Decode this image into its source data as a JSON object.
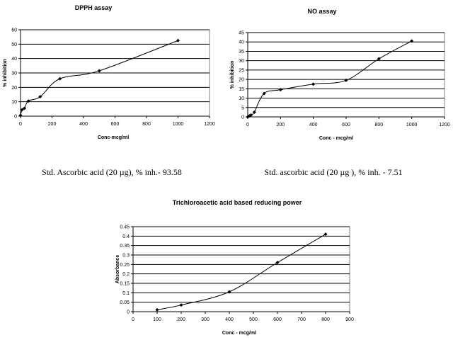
{
  "chart_data": [
    {
      "type": "line",
      "title": "DPPH assay",
      "xlabel": "Conc-mcg/ml",
      "ylabel": "% inhibition",
      "xlim": [
        0,
        1200
      ],
      "ylim": [
        0,
        60
      ],
      "xticks": [
        0,
        200,
        400,
        600,
        800,
        1000,
        1200
      ],
      "yticks": [
        0,
        10,
        20,
        30,
        40,
        50,
        60
      ],
      "x": [
        0,
        10,
        25,
        50,
        125,
        250,
        500,
        1000
      ],
      "y": [
        0.5,
        4.5,
        5.5,
        10.5,
        13.5,
        26,
        31.5,
        52.5
      ],
      "grid": "horizontal",
      "note": "Std. Ascorbic acid (20 µg), % inh.- 93.58"
    },
    {
      "type": "line",
      "title": "NO assay",
      "xlabel": "Conc - mcg/ml",
      "ylabel": "% inhibition",
      "xlim": [
        0,
        1200
      ],
      "ylim": [
        0,
        45
      ],
      "xticks": [
        0,
        200,
        400,
        600,
        800,
        1000,
        1200
      ],
      "yticks": [
        0,
        5,
        10,
        15,
        20,
        25,
        30,
        35,
        40,
        45
      ],
      "x": [
        0,
        10,
        20,
        40,
        100,
        200,
        400,
        600,
        800,
        1000
      ],
      "y": [
        0,
        0.5,
        1,
        2.5,
        12.5,
        14.5,
        17.5,
        19.5,
        31,
        40.5
      ],
      "grid": "horizontal",
      "note": "Std. ascorbic acid (20 µg ), % inh. - 7.51"
    },
    {
      "type": "line",
      "title": "Trichloroacetic acid based reducing power",
      "xlabel": "Conc - mcg/ml",
      "ylabel": "Absorbance",
      "xlim": [
        0,
        900
      ],
      "ylim": [
        0,
        0.45
      ],
      "xticks": [
        0,
        100,
        200,
        300,
        400,
        500,
        600,
        700,
        800,
        900
      ],
      "yticks": [
        0,
        0.05,
        0.1,
        0.15,
        0.2,
        0.25,
        0.3,
        0.35,
        0.4,
        0.45
      ],
      "x": [
        100,
        200,
        400,
        600,
        800
      ],
      "y": [
        0.01,
        0.035,
        0.105,
        0.26,
        0.41
      ],
      "grid": "horizontal"
    }
  ]
}
